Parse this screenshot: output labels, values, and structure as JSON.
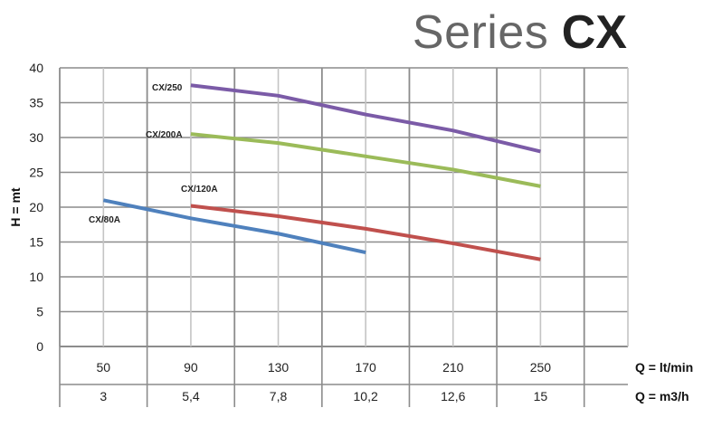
{
  "title": {
    "light": "Series",
    "bold": "CX"
  },
  "chart_data": {
    "type": "line",
    "title": "Series CX",
    "ylabel": "H = mt",
    "xlabel_rows": [
      "Q = lt/min",
      "Q = m3/h"
    ],
    "ylim": [
      0,
      40
    ],
    "yticks": [
      0,
      5,
      10,
      15,
      20,
      25,
      30,
      35,
      40
    ],
    "xlim": [
      30,
      290
    ],
    "xticks": [
      50,
      90,
      130,
      170,
      210,
      250
    ],
    "xticks_m3h": [
      "3",
      "5,4",
      "7,8",
      "10,2",
      "12,6",
      "15"
    ],
    "grid": true,
    "series": [
      {
        "name": "CX/250",
        "color": "#7b5ba7",
        "x": [
          90,
          130,
          170,
          210,
          250
        ],
        "y": [
          37.5,
          36,
          33.3,
          31,
          28
        ]
      },
      {
        "name": "CX/200A",
        "color": "#9bbb59",
        "x": [
          90,
          130,
          170,
          210,
          250
        ],
        "y": [
          30.5,
          29.2,
          27.3,
          25.4,
          23
        ]
      },
      {
        "name": "CX/120A",
        "color": "#c0504d",
        "x": [
          90,
          130,
          170,
          210,
          250
        ],
        "y": [
          20.2,
          18.7,
          16.9,
          14.8,
          12.5
        ]
      },
      {
        "name": "CX/80A",
        "color": "#4f81bd",
        "x": [
          50,
          90,
          130,
          170
        ],
        "y": [
          21,
          18.4,
          16.2,
          13.5
        ]
      }
    ]
  }
}
